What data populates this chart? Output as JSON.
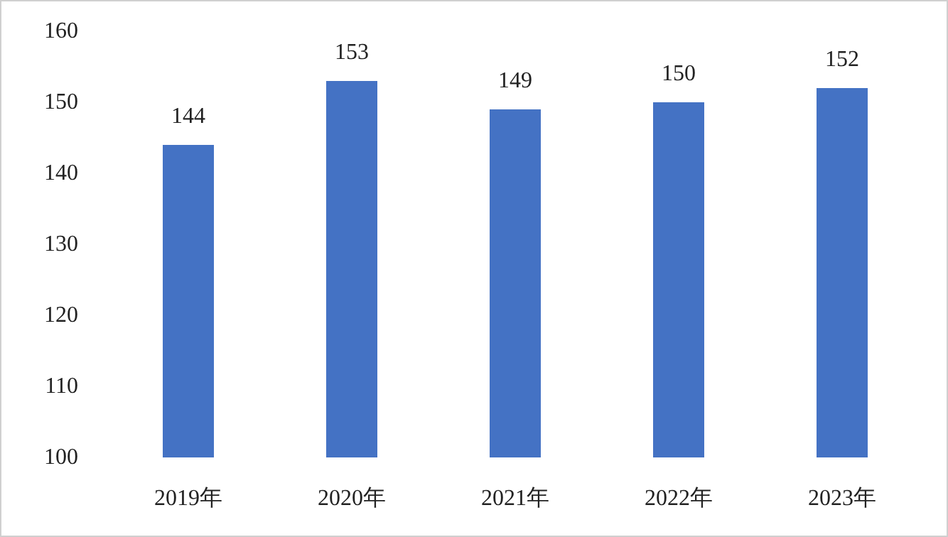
{
  "chart_data": {
    "type": "bar",
    "categories": [
      "2019年",
      "2020年",
      "2021年",
      "2022年",
      "2023年"
    ],
    "values": [
      144,
      153,
      149,
      150,
      152
    ],
    "color": "#4472c4",
    "ylim": [
      100,
      160
    ],
    "yticks": [
      100,
      110,
      120,
      130,
      140,
      150,
      160
    ],
    "data_labels": true
  }
}
